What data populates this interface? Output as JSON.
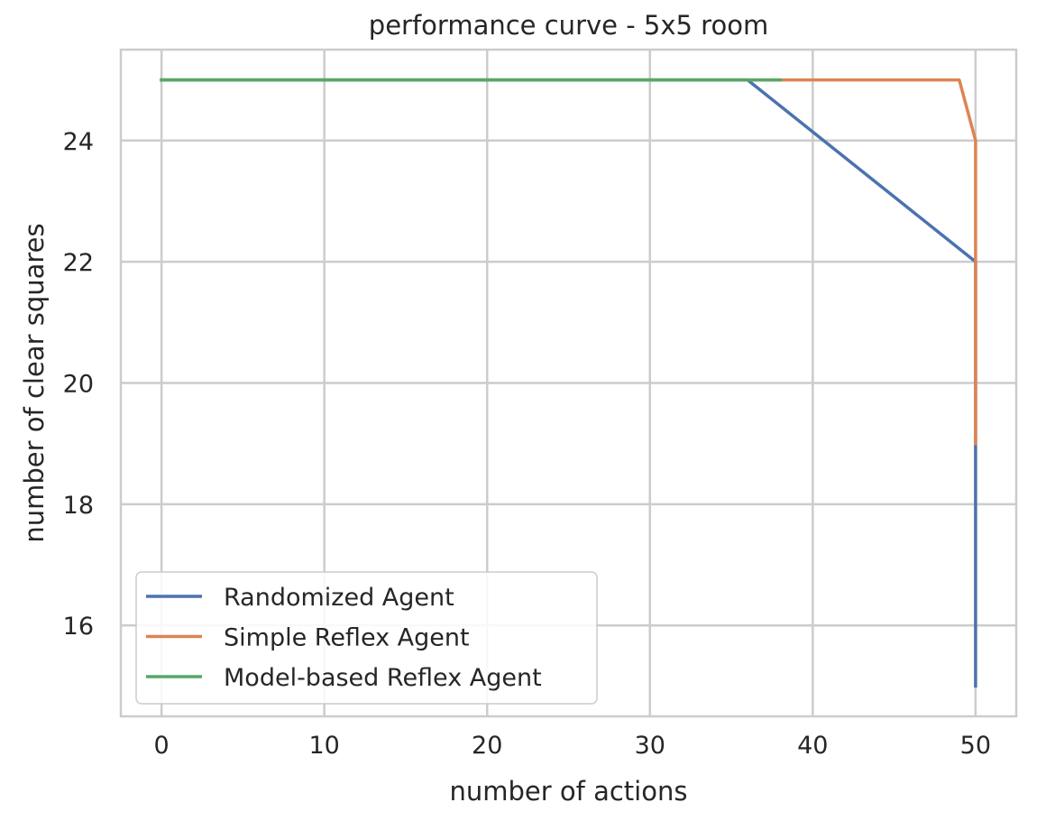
{
  "chart_data": {
    "type": "line",
    "title": "performance curve - 5x5 room",
    "xlabel": "number of actions",
    "ylabel": "number of clear squares",
    "xlim": [
      -2.5,
      52.5
    ],
    "ylim": [
      14.5,
      25.5
    ],
    "xticks": [
      0,
      10,
      20,
      30,
      40,
      50
    ],
    "yticks": [
      16,
      18,
      20,
      22,
      24
    ],
    "grid": true,
    "legend_position": "lower-left",
    "series": [
      {
        "name": "Randomized Agent",
        "color": "#4c72b0",
        "points": [
          [
            0,
            25
          ],
          [
            36,
            25
          ],
          [
            50,
            22
          ],
          [
            50,
            21
          ],
          [
            50,
            19
          ],
          [
            50,
            17
          ],
          [
            50,
            15
          ]
        ]
      },
      {
        "name": "Simple Reflex Agent",
        "color": "#dd8452",
        "points": [
          [
            0,
            25
          ],
          [
            49,
            25
          ],
          [
            50,
            24
          ],
          [
            50,
            22
          ],
          [
            50,
            19
          ]
        ]
      },
      {
        "name": "Model-based Reflex Agent",
        "color": "#55a868",
        "points": [
          [
            0,
            25
          ],
          [
            38,
            25
          ]
        ]
      }
    ]
  }
}
